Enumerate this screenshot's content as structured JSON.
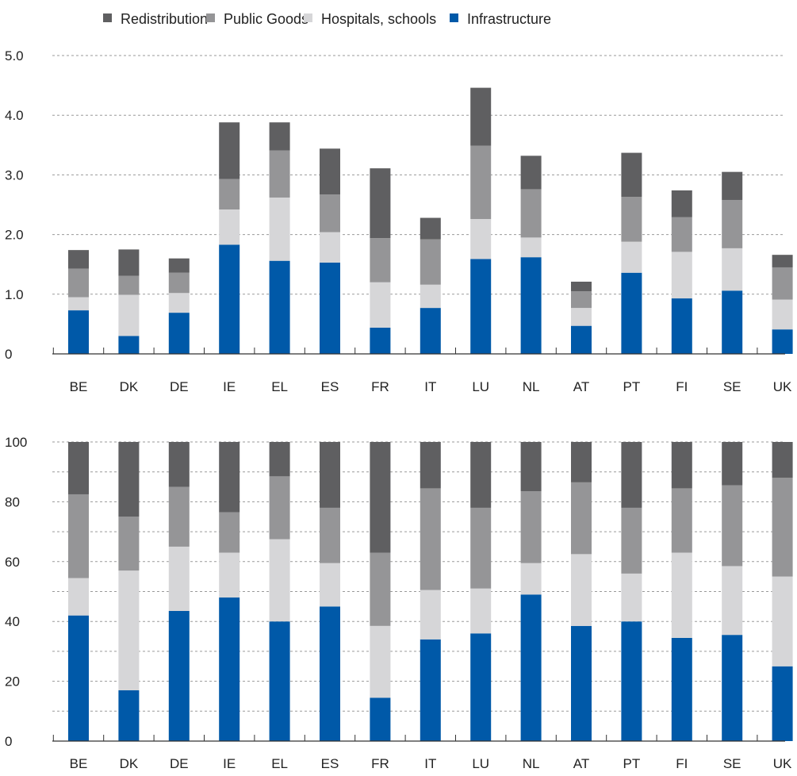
{
  "legend": [
    {
      "label": "Redistribution",
      "color": "#5f5f61"
    },
    {
      "label": "Public Goods",
      "color": "#959597"
    },
    {
      "label": "Hospitals, schools",
      "color": "#d6d6d8"
    },
    {
      "label": "Infrastructure",
      "color": "#0059a8"
    }
  ],
  "chart_data": [
    {
      "type": "bar",
      "stacked": true,
      "categories": [
        "BE",
        "DK",
        "DE",
        "IE",
        "EL",
        "ES",
        "FR",
        "IT",
        "LU",
        "NL",
        "AT",
        "PT",
        "FI",
        "SE",
        "UK"
      ],
      "series": [
        {
          "name": "Infrastructure",
          "values": [
            0.73,
            0.3,
            0.69,
            1.83,
            1.56,
            1.53,
            0.44,
            0.77,
            1.59,
            1.62,
            0.47,
            1.36,
            0.93,
            1.06,
            0.41
          ]
        },
        {
          "name": "Hospitals, schools",
          "values": [
            0.22,
            0.69,
            0.33,
            0.59,
            1.06,
            0.51,
            0.76,
            0.39,
            0.67,
            0.33,
            0.3,
            0.52,
            0.78,
            0.71,
            0.5
          ]
        },
        {
          "name": "Public Goods",
          "values": [
            0.48,
            0.32,
            0.34,
            0.51,
            0.79,
            0.63,
            0.74,
            0.76,
            1.23,
            0.81,
            0.28,
            0.75,
            0.58,
            0.81,
            0.54
          ]
        },
        {
          "name": "Redistribution",
          "values": [
            0.31,
            0.44,
            0.24,
            0.95,
            0.47,
            0.77,
            1.17,
            0.36,
            0.97,
            0.56,
            0.16,
            0.74,
            0.45,
            0.47,
            0.21
          ]
        }
      ],
      "ylim": [
        0,
        5
      ],
      "yticks": [
        0,
        1,
        2,
        3,
        4,
        5
      ],
      "ytick_labels": [
        "0",
        "1.0",
        "2.0",
        "3.0",
        "4.0",
        "5.0"
      ],
      "grid": true
    },
    {
      "type": "bar",
      "stacked": true,
      "categories": [
        "BE",
        "DK",
        "DE",
        "IE",
        "EL",
        "ES",
        "FR",
        "IT",
        "LU",
        "NL",
        "AT",
        "PT",
        "FI",
        "SE",
        "UK"
      ],
      "series": [
        {
          "name": "Infrastructure",
          "values": [
            42,
            17,
            43.5,
            48,
            40,
            45,
            14.5,
            34,
            36,
            49,
            38.5,
            40,
            34.5,
            35.5,
            25
          ]
        },
        {
          "name": "Hospitals, schools",
          "values": [
            12.5,
            40,
            21.5,
            15,
            27.5,
            14.5,
            24,
            16.5,
            15,
            10.5,
            24,
            16,
            28.5,
            23,
            30
          ]
        },
        {
          "name": "Public Goods",
          "values": [
            28,
            18,
            20,
            13.5,
            21,
            18.5,
            24.5,
            34,
            27,
            24,
            24,
            22,
            21.5,
            27,
            33
          ]
        },
        {
          "name": "Redistribution",
          "values": [
            17.5,
            25,
            15,
            23.5,
            11.5,
            22,
            37,
            15.5,
            22,
            16.5,
            13.5,
            22,
            15.5,
            14.5,
            12
          ]
        }
      ],
      "ylim": [
        0,
        100
      ],
      "yticks": [
        0,
        20,
        40,
        60,
        80,
        100
      ],
      "ytick_labels": [
        "0",
        "20",
        "40",
        "60",
        "80",
        "100"
      ],
      "grid": true
    }
  ]
}
